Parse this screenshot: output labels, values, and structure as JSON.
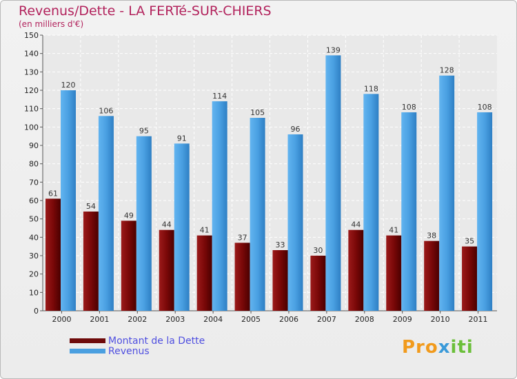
{
  "chart_data": {
    "type": "bar",
    "title": "Revenus/Dette - LA FERTé-SUR-CHIERS",
    "subtitle": "(en milliers d'€)",
    "categories": [
      "2000",
      "2001",
      "2002",
      "2003",
      "2004",
      "2005",
      "2006",
      "2007",
      "2008",
      "2009",
      "2010",
      "2011"
    ],
    "series": [
      {
        "name": "Montant de la Dette",
        "color": "#7a0a0a",
        "values": [
          61,
          54,
          49,
          44,
          41,
          37,
          33,
          30,
          44,
          41,
          38,
          35
        ]
      },
      {
        "name": "Revenus",
        "color": "#4a9fe0",
        "values": [
          120,
          106,
          95,
          91,
          114,
          105,
          96,
          139,
          118,
          108,
          128,
          108
        ]
      }
    ],
    "ylim": [
      0,
      150
    ],
    "yticks": [
      0,
      10,
      20,
      30,
      40,
      50,
      60,
      70,
      80,
      90,
      100,
      110,
      120,
      130,
      140,
      150
    ],
    "grid": true,
    "legend": "bottom-left"
  },
  "logo": {
    "part1": "Pro",
    "part2": "x",
    "part3": "iti"
  }
}
